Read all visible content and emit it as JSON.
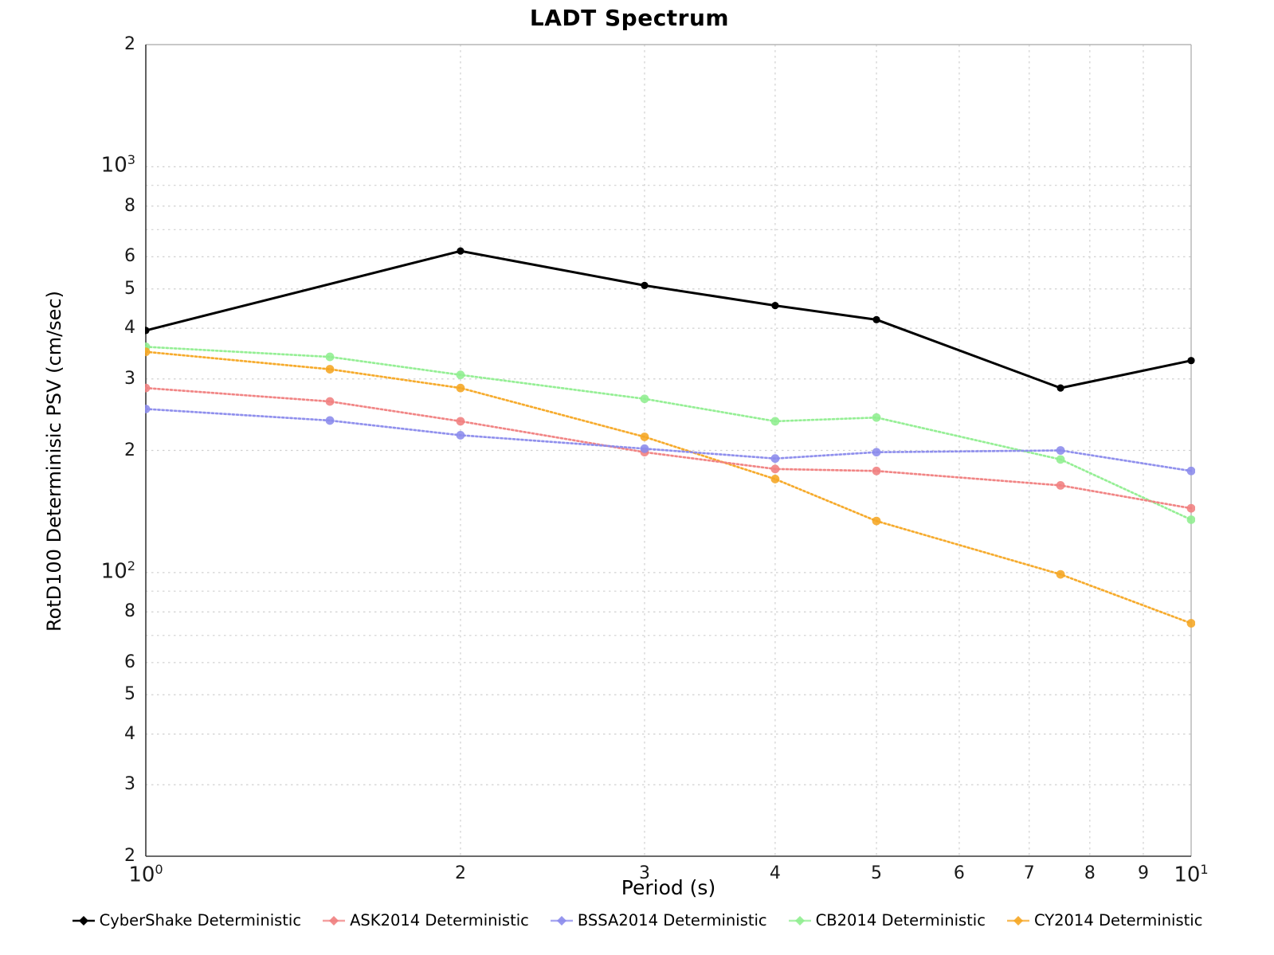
{
  "title": "LADT Spectrum",
  "x_axis": {
    "label": "Period (s)",
    "scale": "log",
    "ticks": [
      {
        "v": 1,
        "t": "10",
        "sup": "0"
      },
      {
        "v": 2,
        "t": "2"
      },
      {
        "v": 3,
        "t": "3"
      },
      {
        "v": 4,
        "t": "4"
      },
      {
        "v": 5,
        "t": "5"
      },
      {
        "v": 6,
        "t": "6"
      },
      {
        "v": 7,
        "t": "7"
      },
      {
        "v": 8,
        "t": "8"
      },
      {
        "v": 9,
        "t": "9"
      },
      {
        "v": 10,
        "t": "10",
        "sup": "1"
      }
    ],
    "gridlines": [
      2,
      3,
      4,
      5,
      6,
      7,
      8,
      9
    ]
  },
  "y_axis": {
    "label": "RotD100 Determinisic PSV (cm/sec)",
    "scale": "log",
    "ticks": [
      {
        "v": 2000,
        "t": "2"
      },
      {
        "v": 1000,
        "t": "10",
        "sup": "3"
      },
      {
        "v": 800,
        "t": "8"
      },
      {
        "v": 600,
        "t": "6"
      },
      {
        "v": 500,
        "t": "5"
      },
      {
        "v": 400,
        "t": "4"
      },
      {
        "v": 300,
        "t": "3"
      },
      {
        "v": 200,
        "t": "2"
      },
      {
        "v": 100,
        "t": "10",
        "sup": "2"
      },
      {
        "v": 80,
        "t": "8"
      },
      {
        "v": 60,
        "t": "6"
      },
      {
        "v": 50,
        "t": "5"
      },
      {
        "v": 40,
        "t": "4"
      },
      {
        "v": 30,
        "t": "3"
      },
      {
        "v": 20,
        "t": "2"
      }
    ],
    "gridlines": [
      30,
      40,
      50,
      60,
      70,
      80,
      90,
      100,
      200,
      300,
      400,
      500,
      600,
      700,
      800,
      900,
      1000
    ]
  },
  "colors": {
    "grid": "#d0d0d0",
    "spine_dark": "#3a3a3a",
    "spine_light": "#b5b5b5"
  },
  "chart_data": {
    "type": "line",
    "title": "LADT Spectrum",
    "xlabel": "Period (s)",
    "ylabel": "RotD100 Determinisic PSV (cm/sec)",
    "x_scale": "log",
    "y_scale": "log",
    "xlim": [
      1,
      10
    ],
    "ylim": [
      20,
      2000
    ],
    "grid": true,
    "legend_position": "bottom",
    "series": [
      {
        "name": "CyberShake Deterministic",
        "color": "#000000",
        "line_style": "solid",
        "x": [
          1,
          2,
          3,
          4,
          5,
          7.5,
          10
        ],
        "y": [
          395,
          620,
          510,
          455,
          420,
          285,
          333
        ]
      },
      {
        "name": "ASK2014 Deterministic",
        "color": "#f08080",
        "line_style": "dotted",
        "x": [
          1,
          1.5,
          2,
          3,
          4,
          5,
          7.5,
          10
        ],
        "y": [
          285,
          264,
          236,
          198,
          180,
          178,
          164,
          144
        ]
      },
      {
        "name": "BSSA2014 Deterministic",
        "color": "#8b8bec",
        "line_style": "dotted",
        "x": [
          1,
          1.5,
          2,
          3,
          4,
          5,
          7.5,
          10
        ],
        "y": [
          253,
          237,
          218,
          202,
          191,
          198,
          200,
          178
        ]
      },
      {
        "name": "CB2014 Deterministic",
        "color": "#90ee90",
        "line_style": "dotted",
        "x": [
          1,
          1.5,
          2,
          3,
          4,
          5,
          7.5,
          10
        ],
        "y": [
          360,
          340,
          307,
          268,
          236,
          241,
          190,
          135
        ]
      },
      {
        "name": "CY2014 Deterministic",
        "color": "#f5a623",
        "line_style": "dotted",
        "x": [
          1,
          1.5,
          2,
          3,
          4,
          5,
          7.5,
          10
        ],
        "y": [
          350,
          317,
          285,
          216,
          170,
          134,
          99,
          75
        ]
      }
    ]
  }
}
